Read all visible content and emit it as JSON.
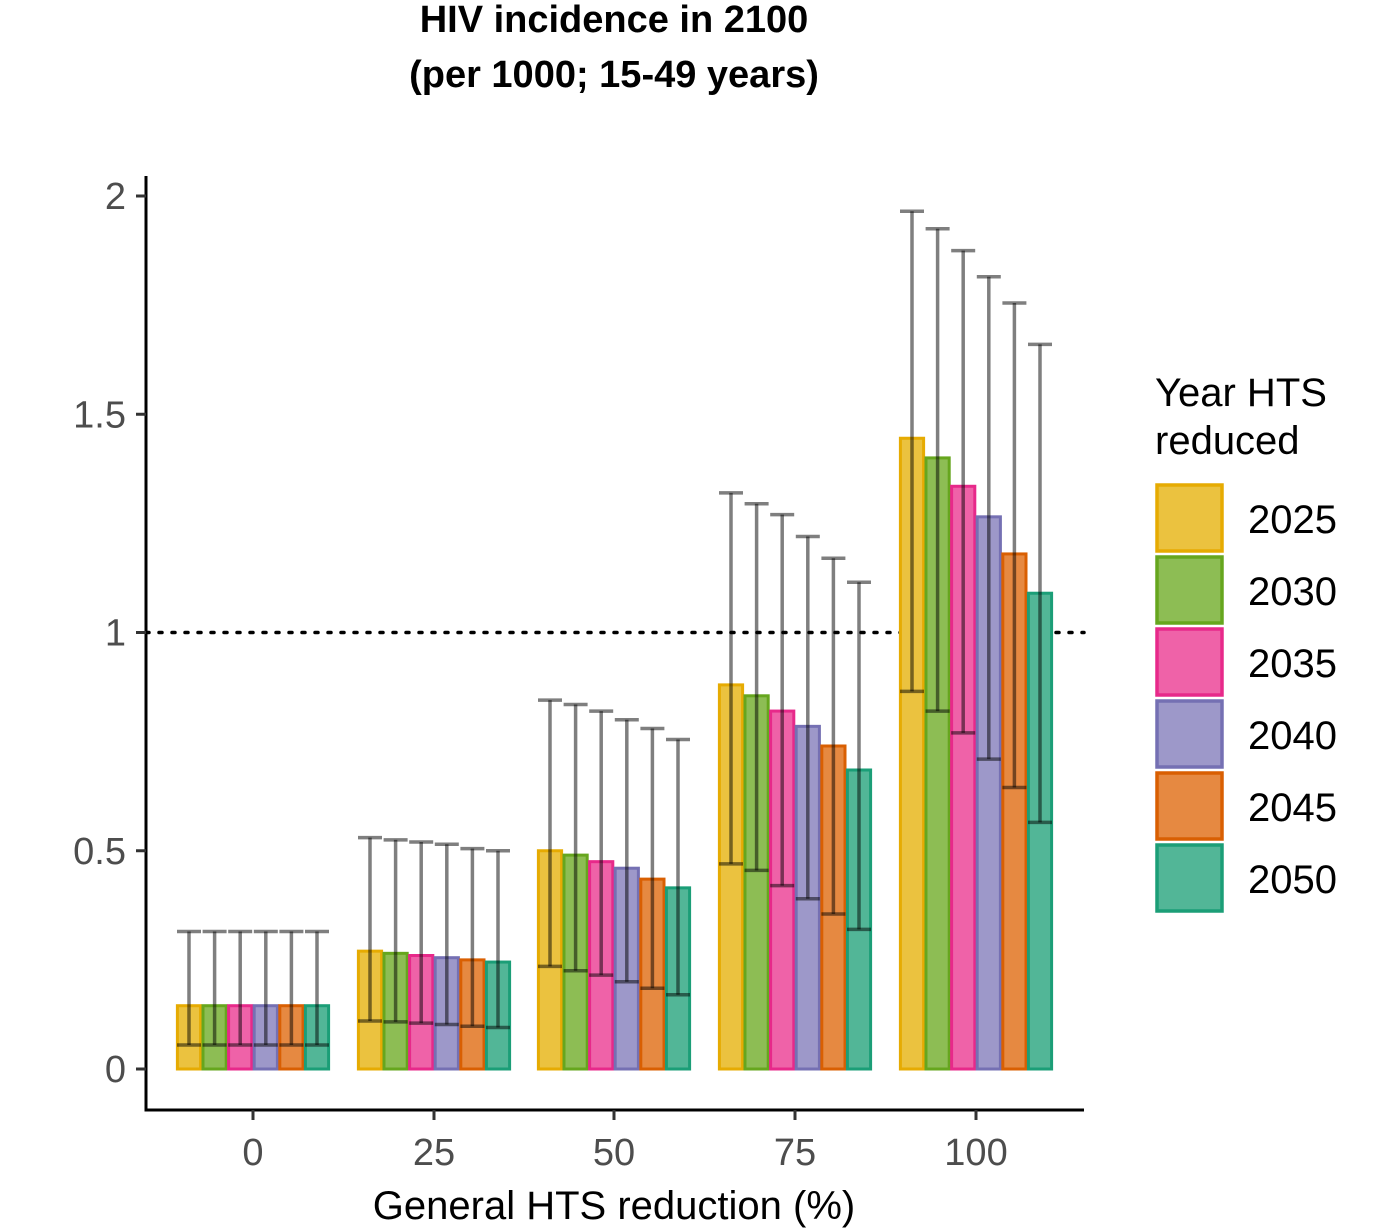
{
  "chart_data": {
    "type": "bar",
    "title_lines": [
      "HIV incidence in 2100",
      "(per 1000; 15-49 years)"
    ],
    "xlabel": "General HTS reduction (%)",
    "ylabel": "",
    "categories": [
      "0",
      "25",
      "50",
      "75",
      "100"
    ],
    "ylim": [
      -0.09,
      2.05
    ],
    "yticks": [
      0,
      0.5,
      1,
      1.5,
      2
    ],
    "ytick_labels": [
      "0",
      "0.5",
      "1",
      "1.5",
      "2"
    ],
    "reference_line": {
      "y": 1,
      "style": "dotted"
    },
    "legend": {
      "title_lines": [
        "Year HTS",
        "reduced"
      ],
      "position": "right"
    },
    "grid": false,
    "series": [
      {
        "name": "2025",
        "fill": "#EBC23F",
        "stroke": "#E6AB02",
        "values": [
          0.145,
          0.27,
          0.5,
          0.88,
          1.445
        ],
        "lower": [
          0.055,
          0.11,
          0.235,
          0.47,
          0.865
        ],
        "upper": [
          0.315,
          0.53,
          0.845,
          1.32,
          1.965
        ]
      },
      {
        "name": "2030",
        "fill": "#8DBD54",
        "stroke": "#66A61E",
        "values": [
          0.145,
          0.265,
          0.49,
          0.855,
          1.4
        ],
        "lower": [
          0.055,
          0.108,
          0.225,
          0.455,
          0.82
        ],
        "upper": [
          0.315,
          0.525,
          0.835,
          1.295,
          1.925
        ]
      },
      {
        "name": "2035",
        "fill": "#EF62A8",
        "stroke": "#E7298A",
        "values": [
          0.145,
          0.26,
          0.475,
          0.82,
          1.335
        ],
        "lower": [
          0.055,
          0.105,
          0.215,
          0.42,
          0.77
        ],
        "upper": [
          0.315,
          0.52,
          0.82,
          1.27,
          1.875
        ]
      },
      {
        "name": "2040",
        "fill": "#9D98C9",
        "stroke": "#7570B3",
        "values": [
          0.145,
          0.255,
          0.46,
          0.785,
          1.265
        ],
        "lower": [
          0.055,
          0.102,
          0.2,
          0.39,
          0.71
        ],
        "upper": [
          0.315,
          0.515,
          0.8,
          1.22,
          1.815
        ]
      },
      {
        "name": "2045",
        "fill": "#E68941",
        "stroke": "#D95F02",
        "values": [
          0.145,
          0.25,
          0.435,
          0.74,
          1.18
        ],
        "lower": [
          0.055,
          0.098,
          0.185,
          0.355,
          0.645
        ],
        "upper": [
          0.315,
          0.505,
          0.78,
          1.17,
          1.755
        ]
      },
      {
        "name": "2050",
        "fill": "#52B697",
        "stroke": "#1B9E77",
        "values": [
          0.145,
          0.245,
          0.415,
          0.685,
          1.09
        ],
        "lower": [
          0.055,
          0.095,
          0.17,
          0.32,
          0.565
        ],
        "upper": [
          0.315,
          0.5,
          0.755,
          1.115,
          1.66
        ]
      }
    ]
  }
}
